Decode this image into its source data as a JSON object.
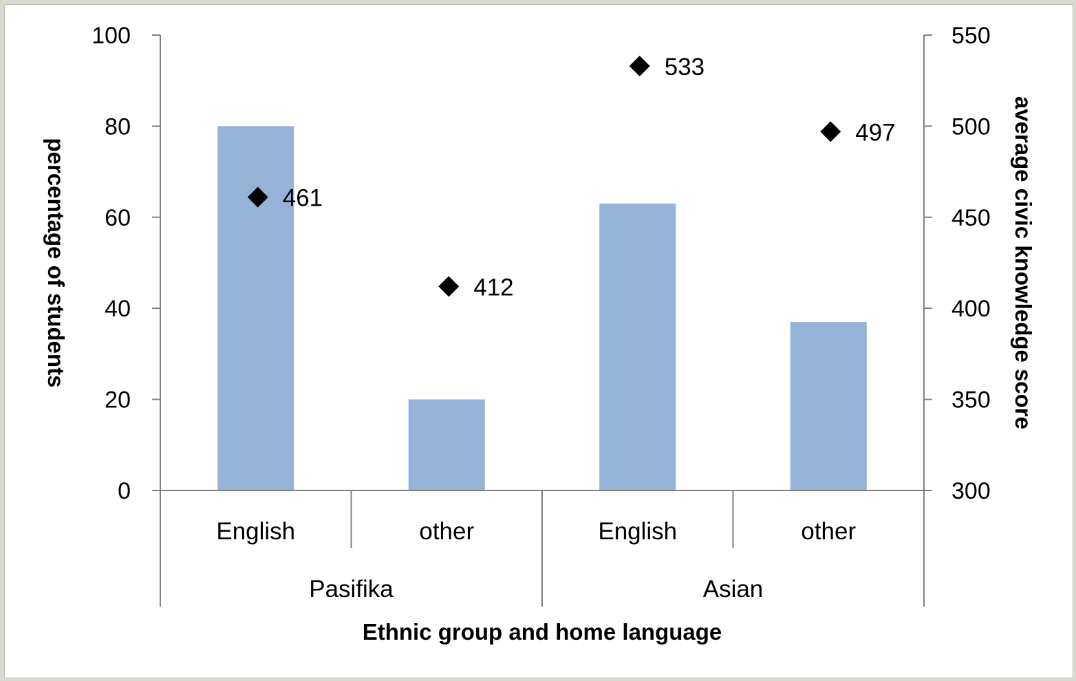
{
  "chart_data": {
    "type": "bar",
    "categories": [
      {
        "group": "Pasifika",
        "language": "English"
      },
      {
        "group": "Pasifika",
        "language": "other"
      },
      {
        "group": "Asian",
        "language": "English"
      },
      {
        "group": "Asian",
        "language": "other"
      }
    ],
    "groups": [
      "Pasifika",
      "Asian"
    ],
    "series": [
      {
        "type": "bar",
        "axis": "left",
        "color": "#95b3d7",
        "values": [
          80,
          20,
          63,
          37
        ]
      },
      {
        "type": "scatter",
        "axis": "right",
        "marker": "diamond",
        "color": "#000000",
        "values": [
          461,
          412,
          533,
          497
        ],
        "labels": [
          "461",
          "412",
          "533",
          "497"
        ]
      }
    ],
    "xlabel": "Ethnic group and home language",
    "ylabel_left": "percentage of students",
    "ylabel_right": "average civic knowledge score",
    "ylim_left": [
      0,
      100
    ],
    "ylim_right": [
      300,
      550
    ],
    "yticks_left": [
      "0",
      "20",
      "40",
      "60",
      "80",
      "100"
    ],
    "yticks_right": [
      "300",
      "350",
      "400",
      "450",
      "500",
      "550"
    ],
    "grid": false,
    "legend": "none"
  }
}
